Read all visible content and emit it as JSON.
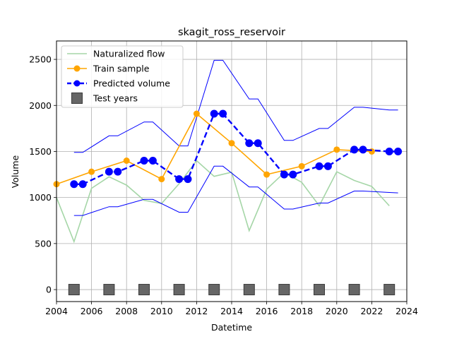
{
  "chart_data": {
    "type": "line",
    "title": "skagit_ross_reservoir",
    "xlabel": "Datetime",
    "ylabel": "Volume",
    "xlim": [
      2004,
      2024
    ],
    "ylim": [
      -130,
      2700
    ],
    "xticks": [
      2004,
      2006,
      2008,
      2010,
      2012,
      2014,
      2016,
      2018,
      2020,
      2022,
      2024
    ],
    "yticks": [
      0,
      500,
      1000,
      1500,
      2000,
      2500
    ],
    "grid": true,
    "legend_position": "top-left",
    "legend": [
      {
        "label": "Naturalized flow",
        "kind": "line",
        "color": "#a5d6a7"
      },
      {
        "label": "Train sample",
        "kind": "line-marker",
        "color": "#ffa500"
      },
      {
        "label": "Predicted volume",
        "kind": "dashed-marker",
        "color": "#0000ff"
      },
      {
        "label": "Test years",
        "kind": "square",
        "color": "#666666"
      }
    ],
    "series": [
      {
        "name": "Naturalized flow",
        "color": "#a5d6a7",
        "x": [
          2004,
          2005,
          2006,
          2007,
          2008,
          2009,
          2010,
          2011,
          2012,
          2013,
          2014,
          2015,
          2016,
          2017,
          2018,
          2019,
          2020,
          2021,
          2022,
          2023
        ],
        "y": [
          1000,
          520,
          1100,
          1225,
          1135,
          970,
          935,
          1150,
          1400,
          1230,
          1275,
          640,
          1090,
          1270,
          1165,
          910,
          1280,
          1185,
          1120,
          910
        ]
      },
      {
        "name": "Train sample",
        "color": "#ffa500",
        "x": [
          2004,
          2006,
          2008,
          2010,
          2012,
          2014,
          2016,
          2018,
          2020,
          2022
        ],
        "y": [
          1145,
          1280,
          1400,
          1200,
          1910,
          1590,
          1250,
          1340,
          1520,
          1500
        ]
      },
      {
        "name": "Predicted volume",
        "color": "#0000ff",
        "x": [
          2005,
          2005.5,
          2007,
          2007.5,
          2009,
          2009.5,
          2011,
          2011.5,
          2013,
          2013.5,
          2015,
          2015.5,
          2017,
          2017.5,
          2019,
          2019.5,
          2021,
          2021.5,
          2023,
          2023.5
        ],
        "y": [
          1145,
          1145,
          1280,
          1280,
          1400,
          1400,
          1200,
          1200,
          1910,
          1910,
          1590,
          1590,
          1250,
          1250,
          1340,
          1340,
          1520,
          1520,
          1500,
          1500
        ]
      },
      {
        "name": "Upper bound",
        "color": "#0000ff",
        "x": [
          2005,
          2005.5,
          2007,
          2007.5,
          2009,
          2009.5,
          2011,
          2011.5,
          2013,
          2013.5,
          2015,
          2015.5,
          2017,
          2017.5,
          2019,
          2019.5,
          2021,
          2021.5,
          2023,
          2023.5
        ],
        "y": [
          1490,
          1490,
          1670,
          1670,
          1820,
          1820,
          1560,
          1560,
          2490,
          2490,
          2070,
          2070,
          1620,
          1620,
          1750,
          1750,
          1980,
          1980,
          1950,
          1950
        ]
      },
      {
        "name": "Lower bound",
        "color": "#0000ff",
        "x": [
          2005,
          2005.5,
          2007,
          2007.5,
          2009,
          2009.5,
          2011,
          2011.5,
          2013,
          2013.5,
          2015,
          2015.5,
          2017,
          2017.5,
          2019,
          2019.5,
          2021,
          2021.5,
          2023,
          2023.5
        ],
        "y": [
          805,
          805,
          900,
          900,
          980,
          980,
          840,
          840,
          1340,
          1340,
          1115,
          1115,
          875,
          875,
          940,
          940,
          1070,
          1070,
          1055,
          1050
        ]
      },
      {
        "name": "Test years",
        "color": "#666666",
        "x": [
          2005,
          2007,
          2009,
          2011,
          2013,
          2015,
          2017,
          2019,
          2021,
          2023
        ],
        "y": [
          0,
          0,
          0,
          0,
          0,
          0,
          0,
          0,
          0,
          0
        ]
      }
    ]
  }
}
